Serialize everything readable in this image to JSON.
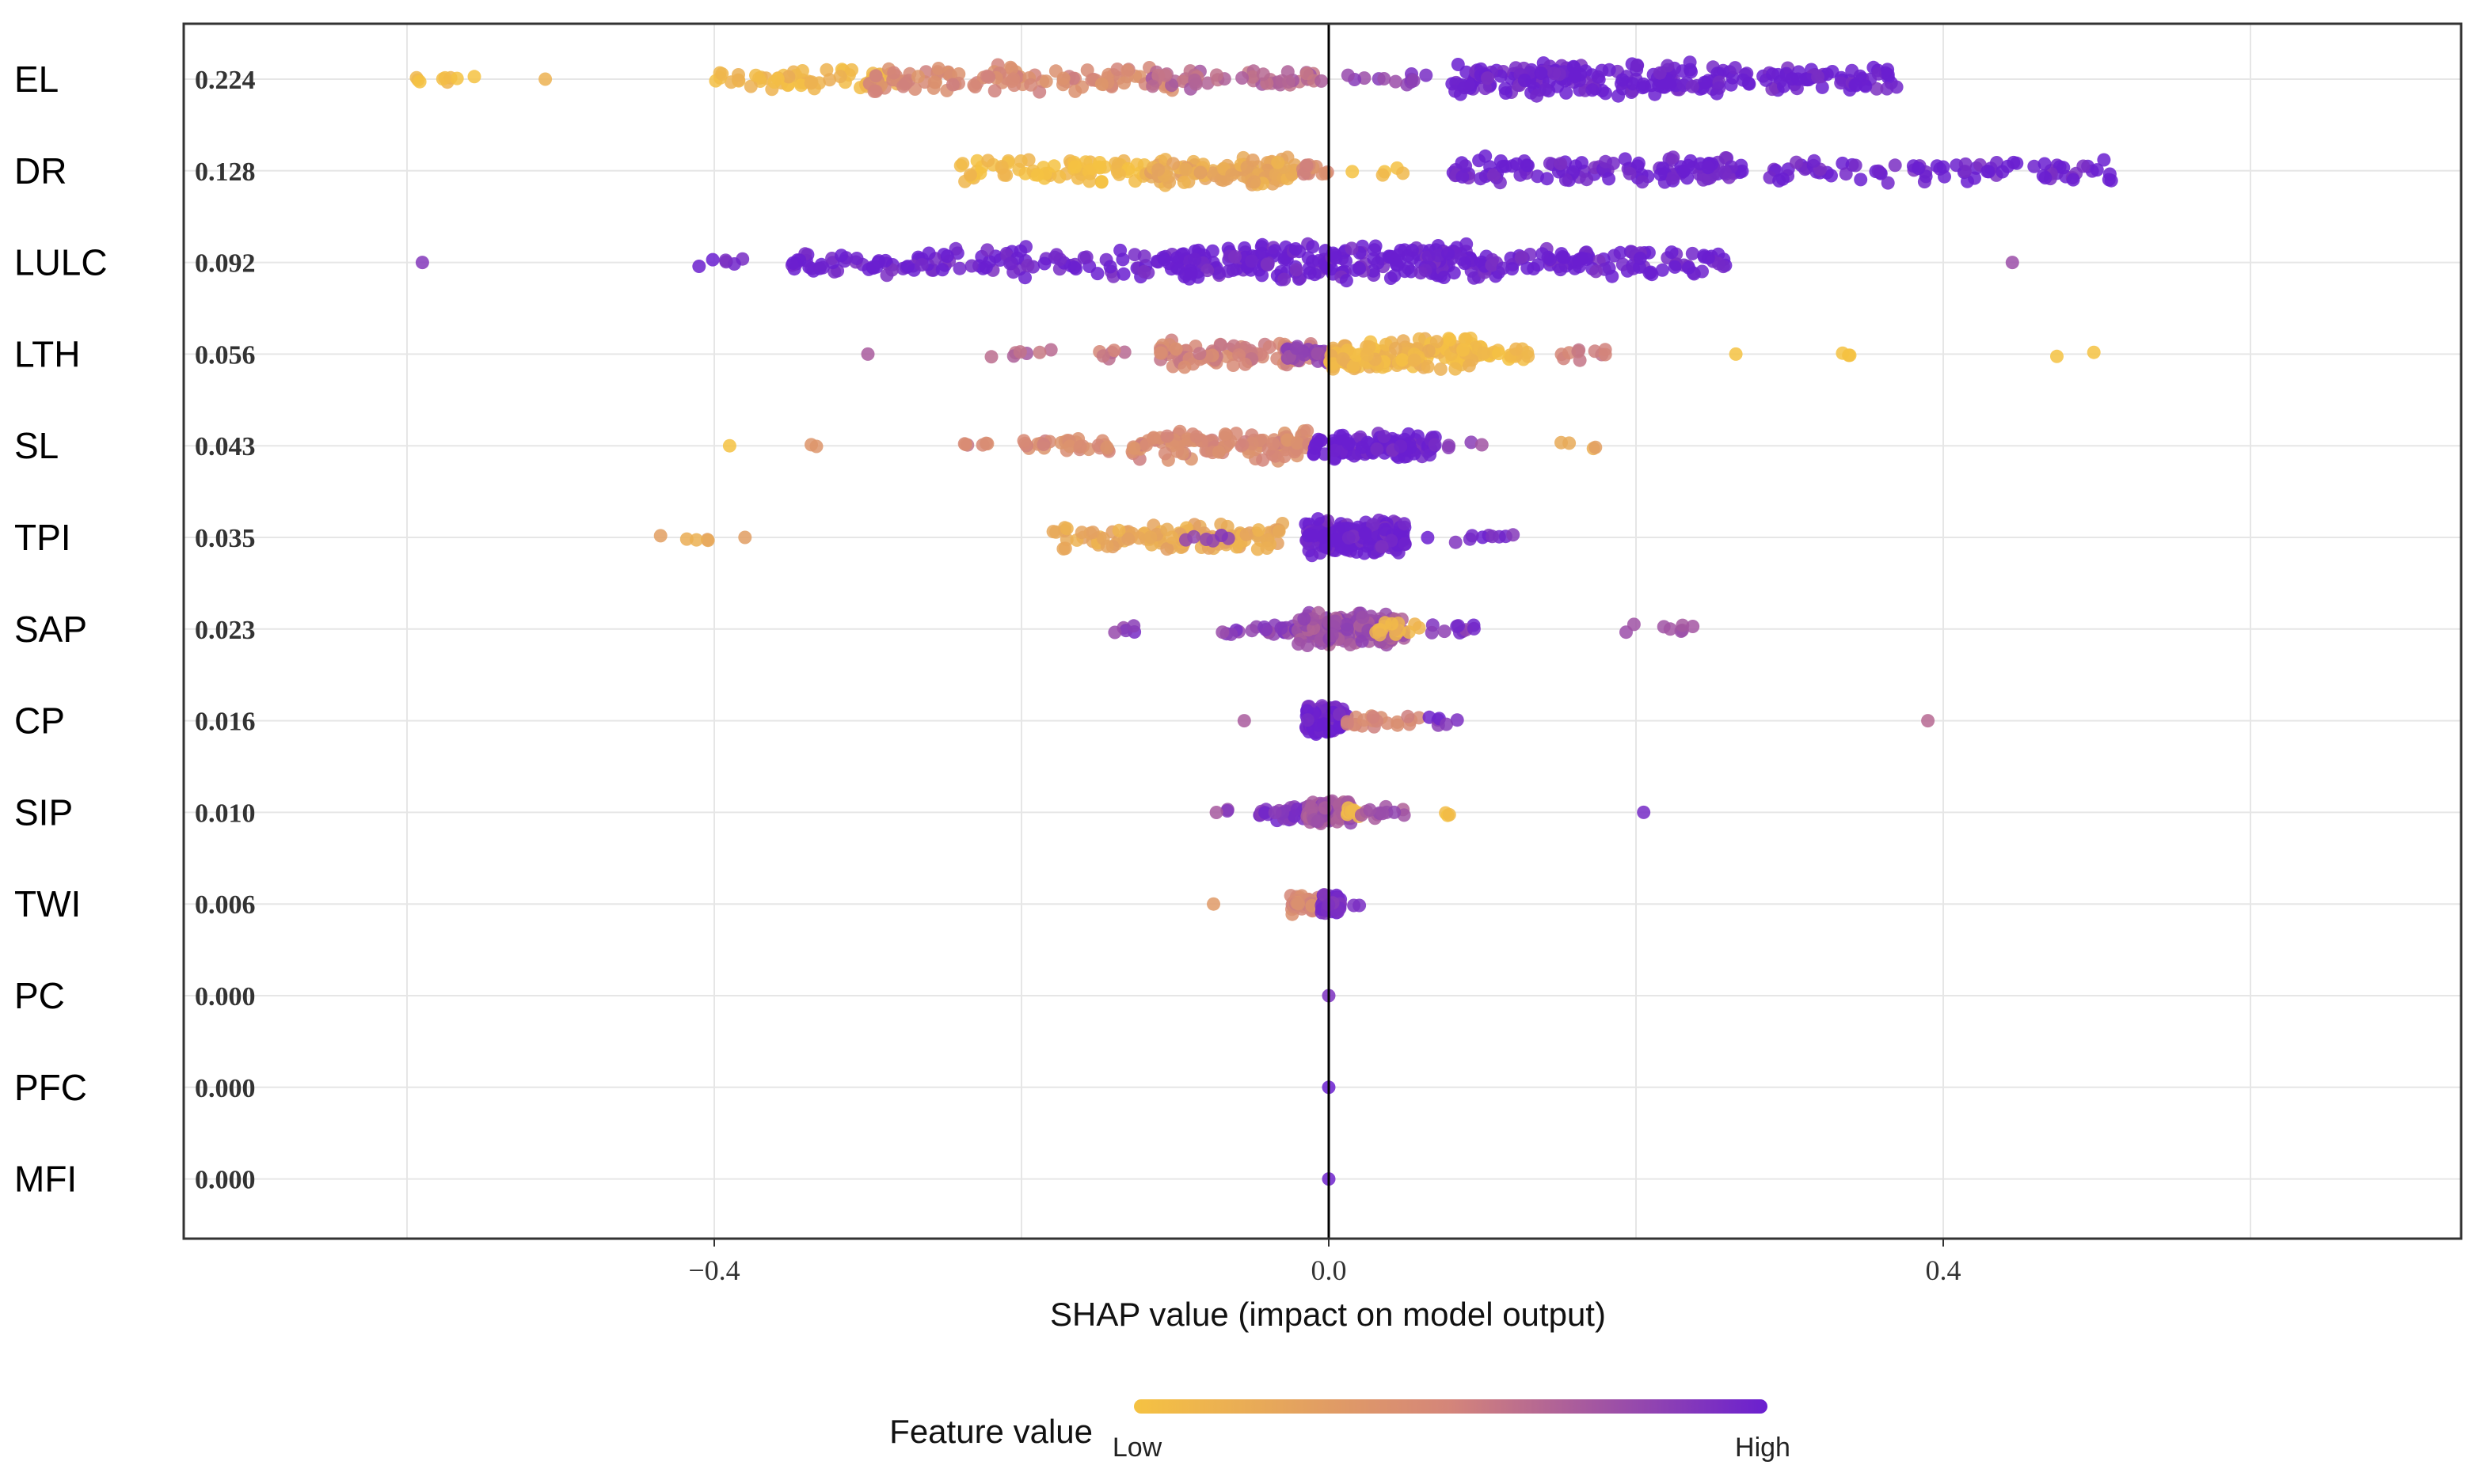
{
  "chart_data": {
    "type": "scatter",
    "subtype": "shap-beeswarm",
    "title": "",
    "xlabel": "SHAP value (impact on model output)",
    "ylabel": "",
    "xlim": [
      -0.75,
      0.75
    ],
    "xticks": [
      {
        "value": -0.4,
        "label": "−0.4"
      },
      {
        "value": 0.0,
        "label": "0.0"
      },
      {
        "value": 0.4,
        "label": "0.4"
      }
    ],
    "grid": true,
    "legend": {
      "title": "Feature value",
      "low_label": "Low",
      "high_label": "High",
      "low_color": "#F5C242",
      "mid_color": "#D4857A",
      "high_color": "#6A1FD0",
      "placement": "bottom-center"
    },
    "features": [
      {
        "name": "EL",
        "mean_abs_shap": "0.224",
        "clusters": [
          {
            "from": -0.62,
            "to": -0.58,
            "n": 3,
            "color": 0.0
          },
          {
            "from": -0.58,
            "to": -0.55,
            "n": 6,
            "color": 0.05
          },
          {
            "from": -0.51,
            "to": -0.51,
            "n": 1,
            "color": 0.05
          },
          {
            "from": -0.4,
            "to": -0.28,
            "n": 60,
            "color": 0.1
          },
          {
            "from": -0.3,
            "to": -0.1,
            "n": 110,
            "color": 0.45
          },
          {
            "from": -0.12,
            "to": 0.0,
            "n": 50,
            "color": 0.65
          },
          {
            "from": 0.01,
            "to": 0.08,
            "n": 12,
            "color": 0.85
          },
          {
            "from": 0.08,
            "to": 0.26,
            "n": 170,
            "color": 1.0
          },
          {
            "from": 0.26,
            "to": 0.37,
            "n": 70,
            "color": 1.0
          }
        ]
      },
      {
        "name": "DR",
        "mean_abs_shap": "0.128",
        "clusters": [
          {
            "from": -0.24,
            "to": -0.12,
            "n": 70,
            "color": 0.05
          },
          {
            "from": -0.12,
            "to": -0.02,
            "n": 110,
            "color": 0.2
          },
          {
            "from": -0.02,
            "to": 0.0,
            "n": 15,
            "color": 0.45
          },
          {
            "from": 0.01,
            "to": 0.05,
            "n": 5,
            "color": 0.0
          },
          {
            "from": 0.08,
            "to": 0.27,
            "n": 120,
            "color": 1.0
          },
          {
            "from": 0.28,
            "to": 0.51,
            "n": 80,
            "color": 1.0
          }
        ]
      },
      {
        "name": "LULC",
        "mean_abs_shap": "0.092",
        "clusters": [
          {
            "from": -0.59,
            "to": -0.59,
            "n": 1,
            "color": 0.85
          },
          {
            "from": -0.42,
            "to": -0.38,
            "n": 6,
            "color": 1.0
          },
          {
            "from": -0.35,
            "to": -0.1,
            "n": 120,
            "color": 1.0
          },
          {
            "from": -0.1,
            "to": 0.1,
            "n": 220,
            "color": 1.0
          },
          {
            "from": 0.1,
            "to": 0.26,
            "n": 100,
            "color": 1.0
          },
          {
            "from": 0.445,
            "to": 0.445,
            "n": 1,
            "color": 0.85
          }
        ]
      },
      {
        "name": "LTH",
        "mean_abs_shap": "0.056",
        "clusters": [
          {
            "from": -0.3,
            "to": -0.3,
            "n": 1,
            "color": 0.75
          },
          {
            "from": -0.235,
            "to": -0.18,
            "n": 7,
            "color": 0.65
          },
          {
            "from": -0.15,
            "to": -0.13,
            "n": 6,
            "color": 0.55
          },
          {
            "from": -0.11,
            "to": -0.01,
            "n": 90,
            "color": 0.5
          },
          {
            "from": -0.03,
            "to": 0.0,
            "n": 30,
            "color": 0.8
          },
          {
            "from": 0.0,
            "to": 0.1,
            "n": 140,
            "color": 0.1
          },
          {
            "from": 0.1,
            "to": 0.13,
            "n": 18,
            "color": 0.05
          },
          {
            "from": 0.15,
            "to": 0.19,
            "n": 10,
            "color": 0.55
          },
          {
            "from": 0.265,
            "to": 0.265,
            "n": 1,
            "color": 0.0
          },
          {
            "from": 0.33,
            "to": 0.34,
            "n": 3,
            "color": 0.0
          },
          {
            "from": 0.465,
            "to": 0.51,
            "n": 2,
            "color": 0.0
          }
        ]
      },
      {
        "name": "SL",
        "mean_abs_shap": "0.043",
        "clusters": [
          {
            "from": -0.39,
            "to": -0.39,
            "n": 1,
            "color": 0.0
          },
          {
            "from": -0.34,
            "to": -0.33,
            "n": 2,
            "color": 0.35
          },
          {
            "from": -0.24,
            "to": -0.2,
            "n": 6,
            "color": 0.5
          },
          {
            "from": -0.2,
            "to": -0.14,
            "n": 30,
            "color": 0.45
          },
          {
            "from": -0.13,
            "to": -0.01,
            "n": 120,
            "color": 0.45
          },
          {
            "from": -0.01,
            "to": 0.07,
            "n": 110,
            "color": 1.0
          },
          {
            "from": 0.07,
            "to": 0.1,
            "n": 4,
            "color": 0.8
          },
          {
            "from": 0.15,
            "to": 0.175,
            "n": 4,
            "color": 0.2
          }
        ]
      },
      {
        "name": "TPI",
        "mean_abs_shap": "0.035",
        "clusters": [
          {
            "from": -0.435,
            "to": -0.4,
            "n": 5,
            "color": 0.2
          },
          {
            "from": -0.38,
            "to": -0.38,
            "n": 1,
            "color": 0.35
          },
          {
            "from": -0.18,
            "to": -0.03,
            "n": 110,
            "color": 0.2
          },
          {
            "from": -0.1,
            "to": -0.06,
            "n": 6,
            "color": 0.85
          },
          {
            "from": -0.015,
            "to": 0.05,
            "n": 170,
            "color": 1.0
          },
          {
            "from": 0.05,
            "to": 0.12,
            "n": 10,
            "color": 0.95
          }
        ]
      },
      {
        "name": "SAP",
        "mean_abs_shap": "0.023",
        "clusters": [
          {
            "from": -0.14,
            "to": -0.1,
            "n": 5,
            "color": 0.85
          },
          {
            "from": -0.07,
            "to": -0.01,
            "n": 25,
            "color": 0.85
          },
          {
            "from": -0.02,
            "to": 0.05,
            "n": 150,
            "color": 0.75
          },
          {
            "from": 0.03,
            "to": 0.06,
            "n": 15,
            "color": 0.15
          },
          {
            "from": 0.06,
            "to": 0.1,
            "n": 10,
            "color": 0.9
          },
          {
            "from": 0.18,
            "to": 0.24,
            "n": 8,
            "color": 0.8
          }
        ]
      },
      {
        "name": "CP",
        "mean_abs_shap": "0.016",
        "clusters": [
          {
            "from": -0.055,
            "to": -0.055,
            "n": 1,
            "color": 0.7
          },
          {
            "from": -0.015,
            "to": 0.012,
            "n": 130,
            "color": 1.0
          },
          {
            "from": 0.012,
            "to": 0.06,
            "n": 20,
            "color": 0.45
          },
          {
            "from": 0.065,
            "to": 0.085,
            "n": 6,
            "color": 0.9
          },
          {
            "from": 0.39,
            "to": 0.39,
            "n": 1,
            "color": 0.7
          }
        ]
      },
      {
        "name": "SIP",
        "mean_abs_shap": "0.010",
        "clusters": [
          {
            "from": -0.075,
            "to": -0.065,
            "n": 3,
            "color": 0.8
          },
          {
            "from": -0.045,
            "to": -0.015,
            "n": 30,
            "color": 0.9
          },
          {
            "from": -0.015,
            "to": 0.015,
            "n": 90,
            "color": 0.75
          },
          {
            "from": 0.012,
            "to": 0.02,
            "n": 10,
            "color": 0.1
          },
          {
            "from": 0.02,
            "to": 0.05,
            "n": 12,
            "color": 0.75
          },
          {
            "from": 0.075,
            "to": 0.08,
            "n": 3,
            "color": 0.05
          },
          {
            "from": 0.205,
            "to": 0.205,
            "n": 1,
            "color": 0.9
          }
        ]
      },
      {
        "name": "TWI",
        "mean_abs_shap": "0.006",
        "clusters": [
          {
            "from": -0.075,
            "to": -0.075,
            "n": 1,
            "color": 0.4
          },
          {
            "from": -0.025,
            "to": -0.005,
            "n": 50,
            "color": 0.45
          },
          {
            "from": -0.005,
            "to": 0.008,
            "n": 50,
            "color": 0.95
          },
          {
            "from": 0.015,
            "to": 0.02,
            "n": 2,
            "color": 1.0
          }
        ]
      },
      {
        "name": "PC",
        "mean_abs_shap": "0.000",
        "clusters": [
          {
            "from": 0.0,
            "to": 0.0,
            "n": 1,
            "color": 1.0
          }
        ]
      },
      {
        "name": "PFC",
        "mean_abs_shap": "0.000",
        "clusters": [
          {
            "from": 0.0,
            "to": 0.0,
            "n": 1,
            "color": 1.0
          }
        ]
      },
      {
        "name": "MFI",
        "mean_abs_shap": "0.000",
        "clusters": [
          {
            "from": 0.0,
            "to": 0.0,
            "n": 1,
            "color": 1.0
          }
        ]
      }
    ]
  }
}
